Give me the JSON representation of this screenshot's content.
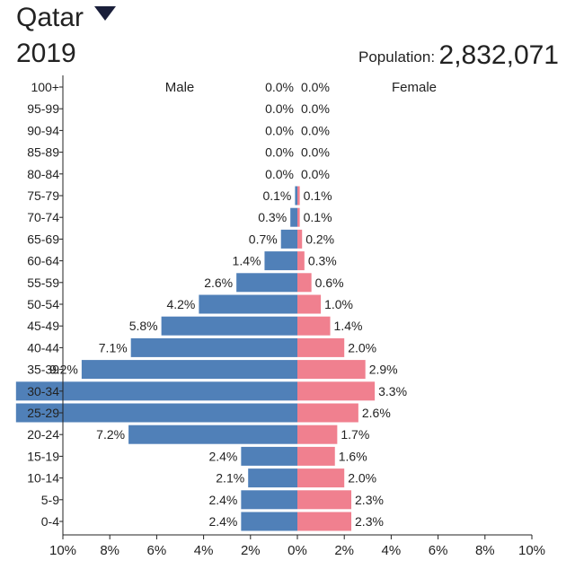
{
  "header": {
    "country": "Qatar",
    "year": "2019",
    "population_label": "Population:",
    "population_value": "2,832,071"
  },
  "chart_data": {
    "type": "bar",
    "orientation": "horizontal-pyramid",
    "categories": [
      "100+",
      "95-99",
      "90-94",
      "85-89",
      "80-84",
      "75-79",
      "70-74",
      "65-69",
      "60-64",
      "55-59",
      "50-54",
      "45-49",
      "40-44",
      "35-39",
      "30-34",
      "25-29",
      "20-24",
      "15-19",
      "10-14",
      "5-9",
      "0-4"
    ],
    "series": [
      {
        "name": "Male",
        "color": "#5080b8",
        "values": [
          0.0,
          0.0,
          0.0,
          0.0,
          0.0,
          0.1,
          0.3,
          0.7,
          1.4,
          2.6,
          4.2,
          5.8,
          7.1,
          9.2,
          12.0,
          12.0,
          7.2,
          2.4,
          2.1,
          2.4,
          2.4
        ],
        "labels": [
          "0.0%",
          "0.0%",
          "0.0%",
          "0.0%",
          "0.0%",
          "0.1%",
          "0.3%",
          "0.7%",
          "1.4%",
          "2.6%",
          "4.2%",
          "5.8%",
          "7.1%",
          "9.2%",
          "",
          "",
          "7.2%",
          "2.4%",
          "2.1%",
          "2.4%",
          "2.4%"
        ]
      },
      {
        "name": "Female",
        "color": "#f0808f",
        "values": [
          0.0,
          0.0,
          0.0,
          0.0,
          0.0,
          0.1,
          0.1,
          0.2,
          0.3,
          0.6,
          1.0,
          1.4,
          2.0,
          2.9,
          3.3,
          2.6,
          1.7,
          1.6,
          2.0,
          2.3,
          2.3
        ],
        "labels": [
          "0.0%",
          "0.0%",
          "0.0%",
          "0.0%",
          "0.0%",
          "0.1%",
          "0.1%",
          "0.2%",
          "0.3%",
          "0.6%",
          "1.0%",
          "1.4%",
          "2.0%",
          "2.9%",
          "3.3%",
          "2.6%",
          "1.7%",
          "1.6%",
          "2.0%",
          "2.3%",
          "2.3%"
        ]
      }
    ],
    "x_ticks": [
      "10%",
      "8%",
      "6%",
      "4%",
      "2%",
      "0%",
      "2%",
      "4%",
      "6%",
      "8%",
      "10%"
    ],
    "xlim": [
      -10,
      10
    ],
    "grid": false,
    "legend": "top"
  }
}
